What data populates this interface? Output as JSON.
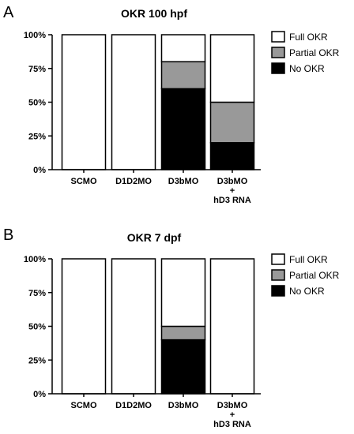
{
  "chart_data": [
    {
      "panel": "A",
      "type": "bar",
      "stacked": true,
      "title": "OKR 100 hpf",
      "categories": [
        "SCMO",
        "D1D2MO",
        "D3bMO",
        "D3bMO\n+\nhD3 RNA"
      ],
      "series": [
        {
          "name": "No OKR",
          "color": "#000000",
          "values": [
            0,
            0,
            60,
            20
          ]
        },
        {
          "name": "Partial OKR",
          "color": "#999999",
          "values": [
            0,
            0,
            20,
            30
          ]
        },
        {
          "name": "Full OKR",
          "color": "#ffffff",
          "values": [
            100,
            100,
            20,
            50
          ]
        }
      ],
      "ylim": [
        0,
        100
      ],
      "yticks": [
        "0%",
        "25%",
        "50%",
        "75%",
        "100%"
      ],
      "legend": "top-right",
      "legend_order": [
        "Full OKR",
        "Partial OKR",
        "No OKR"
      ]
    },
    {
      "panel": "B",
      "type": "bar",
      "stacked": true,
      "title": "OKR 7 dpf",
      "categories": [
        "SCMO",
        "D1D2MO",
        "D3bMO",
        "D3bMO\n+\nhD3 RNA"
      ],
      "series": [
        {
          "name": "No OKR",
          "color": "#000000",
          "values": [
            0,
            0,
            40,
            0
          ]
        },
        {
          "name": "Partial OKR",
          "color": "#999999",
          "values": [
            0,
            0,
            10,
            0
          ]
        },
        {
          "name": "Full OKR",
          "color": "#ffffff",
          "values": [
            100,
            100,
            50,
            100
          ]
        }
      ],
      "ylim": [
        0,
        100
      ],
      "yticks": [
        "0%",
        "25%",
        "50%",
        "75%",
        "100%"
      ],
      "legend": "top-right",
      "legend_order": [
        "Full OKR",
        "Partial OKR",
        "No OKR"
      ]
    }
  ]
}
